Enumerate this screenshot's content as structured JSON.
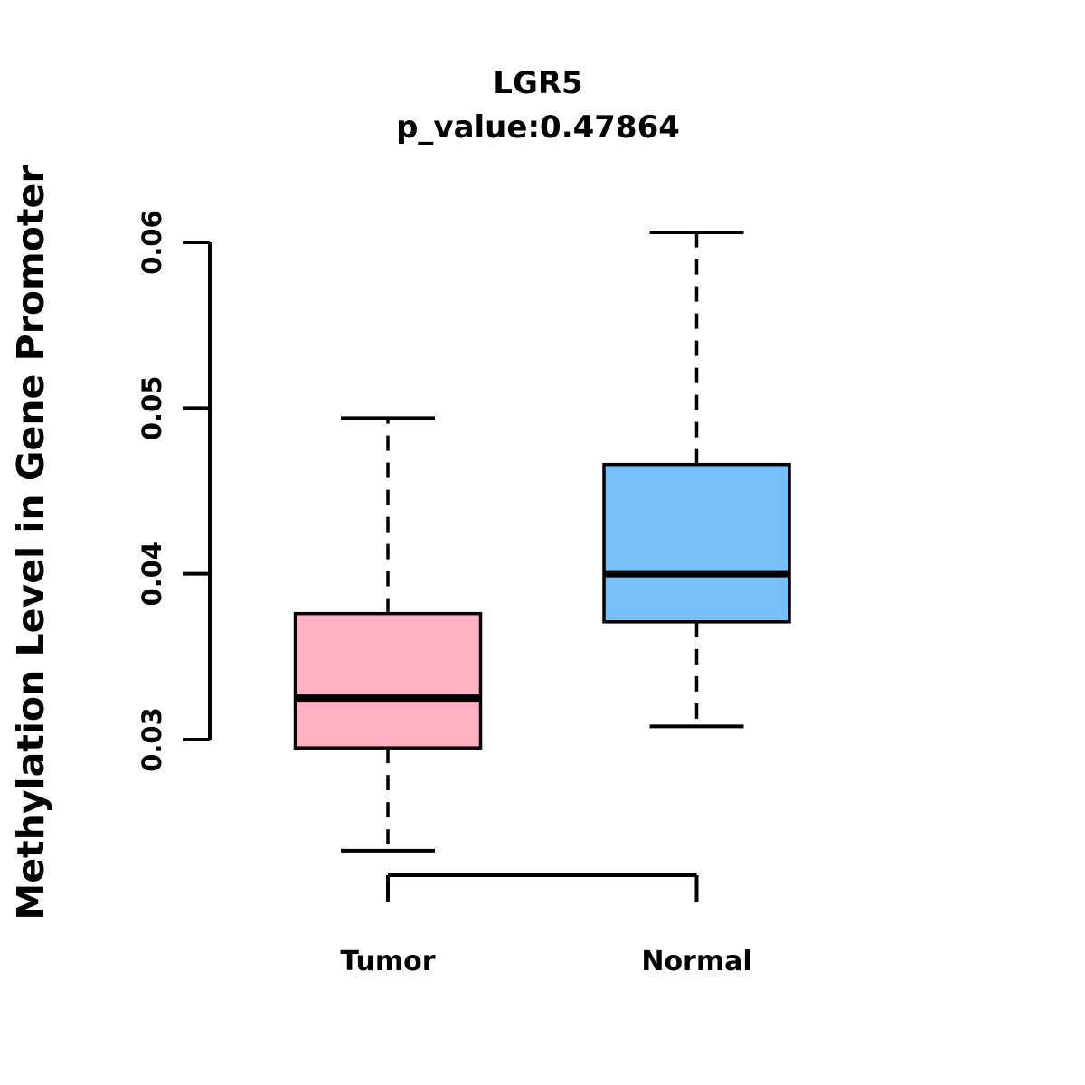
{
  "chart_data": {
    "type": "boxplot",
    "title": "LGR5",
    "subtitle": "p_value:0.47864",
    "ylabel": "Methylation Level in Gene Promoter",
    "xlabel": "",
    "categories": [
      "Tumor",
      "Normal"
    ],
    "series": [
      {
        "name": "Tumor",
        "fill": "#ffb1c1",
        "lower_whisker": 0.0233,
        "q1": 0.0295,
        "median": 0.0325,
        "q3": 0.0376,
        "upper_whisker": 0.0494
      },
      {
        "name": "Normal",
        "fill": "#76bff8",
        "lower_whisker": 0.0308,
        "q1": 0.0371,
        "median": 0.04,
        "q3": 0.0466,
        "upper_whisker": 0.0606
      }
    ],
    "ytick_labels": [
      "0.03",
      "0.04",
      "0.05",
      "0.06"
    ],
    "ytick_values": [
      0.03,
      0.04,
      0.05,
      0.06
    ],
    "ylim": [
      0.0218,
      0.0621
    ],
    "grid": false,
    "legend": "none",
    "stroke_color": "#000000",
    "background": "#ffffff"
  }
}
